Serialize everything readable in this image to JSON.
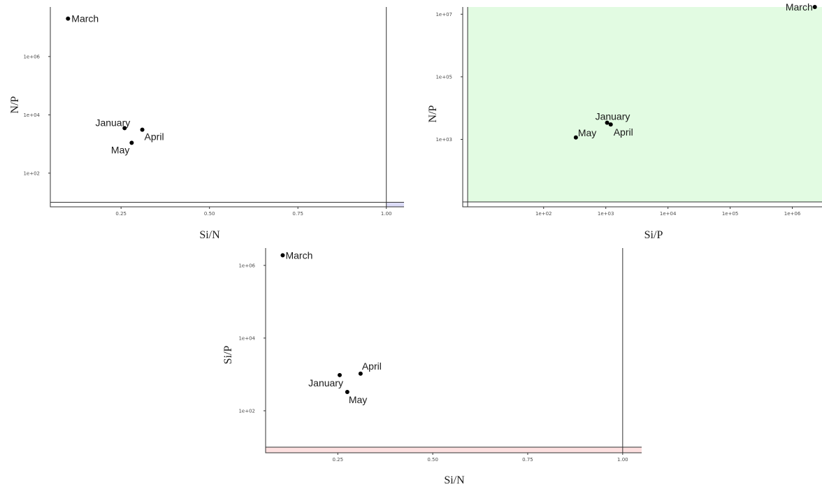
{
  "chart_data": [
    {
      "type": "scatter",
      "xlabel": "Si/N",
      "ylabel": "N/P",
      "x_scale": "linear",
      "y_scale": "log10",
      "xlim": [
        0.05,
        1.05
      ],
      "ylim": [
        7,
        50000000
      ],
      "x_ticks": [
        0.25,
        0.5,
        0.75,
        1.0
      ],
      "x_tick_labels": [
        "0.25",
        "0.50",
        "0.75",
        "1.00"
      ],
      "y_ticks": [
        100,
        10000,
        1000000
      ],
      "y_tick_labels": [
        "1e+02",
        "1e+04",
        "1e+06"
      ],
      "reference_lines": {
        "vertical": 1.0,
        "horizontal": 10
      },
      "shaded_region": {
        "x": [
          1.0,
          1.05
        ],
        "y": [
          7,
          10
        ],
        "color": "#dcdcf8"
      },
      "grid": false,
      "points": [
        {
          "label": "March",
          "x": 0.1,
          "y": 20000000
        },
        {
          "label": "January",
          "x": 0.26,
          "y": 3500
        },
        {
          "label": "April",
          "x": 0.31,
          "y": 3100
        },
        {
          "label": "May",
          "x": 0.28,
          "y": 1100
        }
      ]
    },
    {
      "type": "scatter",
      "xlabel": "Si/P",
      "ylabel": "N/P",
      "x_scale": "log10",
      "y_scale": "log10",
      "xlim": [
        5,
        3000000
      ],
      "ylim": [
        7,
        17000000
      ],
      "x_ticks": [
        100,
        1000,
        10000,
        100000,
        1000000
      ],
      "x_tick_labels": [
        "1e+02",
        "1e+03",
        "1e+04",
        "1e+05",
        "1e+06"
      ],
      "y_ticks": [
        1000,
        100000,
        10000000
      ],
      "y_tick_labels": [
        "1e+03",
        "1e+05",
        "1e+07"
      ],
      "reference_lines": {
        "vertical": 6,
        "horizontal": 10
      },
      "shaded_region": {
        "x": [
          6,
          3000000
        ],
        "y": [
          10,
          17000000
        ],
        "color": "#e2fbe2"
      },
      "grid": false,
      "points": [
        {
          "label": "March",
          "x": 2300000,
          "y": 22000000
        },
        {
          "label": "January",
          "x": 1050,
          "y": 3400
        },
        {
          "label": "April",
          "x": 1200,
          "y": 3000
        },
        {
          "label": "May",
          "x": 330,
          "y": 1150
        }
      ]
    },
    {
      "type": "scatter",
      "xlabel": "Si/N",
      "ylabel": "Si/P",
      "x_scale": "linear",
      "y_scale": "log10",
      "xlim": [
        0.06,
        1.05
      ],
      "ylim": [
        7,
        3000000
      ],
      "x_ticks": [
        0.25,
        0.5,
        0.75,
        1.0
      ],
      "x_tick_labels": [
        "0.25",
        "0.50",
        "0.75",
        "1.00"
      ],
      "y_ticks": [
        100,
        10000,
        1000000
      ],
      "y_tick_labels": [
        "1e+02",
        "1e+04",
        "1e+06"
      ],
      "reference_lines": {
        "vertical": 1.0,
        "horizontal": 10
      },
      "shaded_region": {
        "x": [
          0.06,
          1.05
        ],
        "y": [
          7,
          10
        ],
        "color": "#fde0e0"
      },
      "grid": false,
      "points": [
        {
          "label": "March",
          "x": 0.105,
          "y": 1900000
        },
        {
          "label": "January",
          "x": 0.255,
          "y": 960
        },
        {
          "label": "April",
          "x": 0.31,
          "y": 1050
        },
        {
          "label": "May",
          "x": 0.275,
          "y": 330
        }
      ]
    }
  ]
}
